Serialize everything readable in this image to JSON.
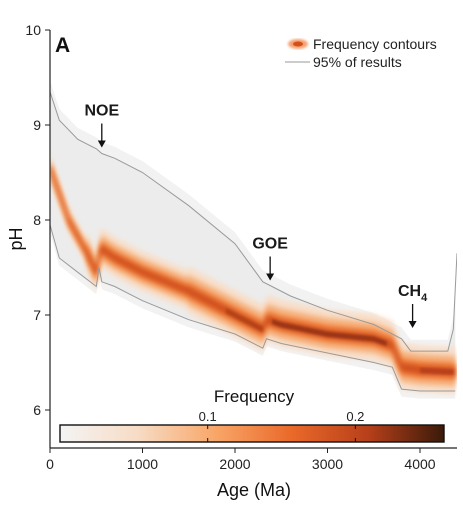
{
  "chart_data": {
    "type": "area",
    "panel_label": "A",
    "title": "",
    "xlabel": "Age (Ma)",
    "ylabel": "pH",
    "xlim": [
      0,
      4400
    ],
    "ylim": [
      5.6,
      10
    ],
    "x_ticks": [
      0,
      1000,
      2000,
      3000,
      4000
    ],
    "y_ticks": [
      6,
      7,
      8,
      9,
      10
    ],
    "grid": false,
    "legend_position": "top-right",
    "legend": [
      {
        "name": "Frequency contours",
        "kind": "swatch",
        "color": "#e8682a"
      },
      {
        "name": "95% of results",
        "kind": "line",
        "color": "#9a9a9a"
      }
    ],
    "series": [
      {
        "name": "median",
        "x": [
          0,
          200,
          400,
          500,
          550,
          700,
          1000,
          1500,
          2000,
          2300,
          2350,
          2500,
          3000,
          3500,
          3700,
          3800,
          4000,
          4200,
          4380
        ],
        "values": [
          8.55,
          8.0,
          7.65,
          7.45,
          7.7,
          7.6,
          7.45,
          7.25,
          7.0,
          6.85,
          6.95,
          6.9,
          6.8,
          6.75,
          6.68,
          6.45,
          6.42,
          6.41,
          6.4
        ]
      },
      {
        "name": "95% of results (upper)",
        "x": [
          0,
          100,
          300,
          500,
          560,
          700,
          1000,
          1500,
          2000,
          2300,
          2400,
          2600,
          3000,
          3500,
          3800,
          3900,
          4200,
          4300,
          4360,
          4400
        ],
        "values": [
          9.35,
          9.05,
          8.85,
          8.75,
          8.7,
          8.65,
          8.5,
          8.15,
          7.75,
          7.35,
          7.3,
          7.2,
          7.05,
          6.9,
          6.75,
          6.62,
          6.62,
          6.62,
          6.85,
          7.65
        ]
      },
      {
        "name": "95% of results (lower)",
        "x": [
          0,
          100,
          300,
          500,
          530,
          560,
          700,
          1000,
          1500,
          2000,
          2300,
          2340,
          2500,
          3000,
          3500,
          3700,
          3800,
          4000,
          4200,
          4380
        ],
        "values": [
          7.95,
          7.6,
          7.45,
          7.3,
          7.5,
          7.35,
          7.3,
          7.15,
          6.95,
          6.8,
          6.65,
          6.75,
          6.7,
          6.6,
          6.5,
          6.45,
          6.22,
          6.2,
          6.2,
          6.2
        ]
      }
    ],
    "annotations": [
      {
        "label": "NOE",
        "x": 560,
        "y": 8.7
      },
      {
        "label": "GOE",
        "x": 2380,
        "y": 7.3
      },
      {
        "label": "CH4",
        "text": "CH",
        "subscript": "4",
        "x": 3920,
        "y": 6.8
      }
    ],
    "colorbar": {
      "label": "Frequency",
      "ticks": [
        0.1,
        0.2
      ],
      "range": [
        0,
        0.26
      ],
      "colors": [
        "#f4f4f4",
        "#f7dcc6",
        "#f8a86a",
        "#ea6a2a",
        "#b8401a",
        "#3a1a0a"
      ]
    }
  }
}
